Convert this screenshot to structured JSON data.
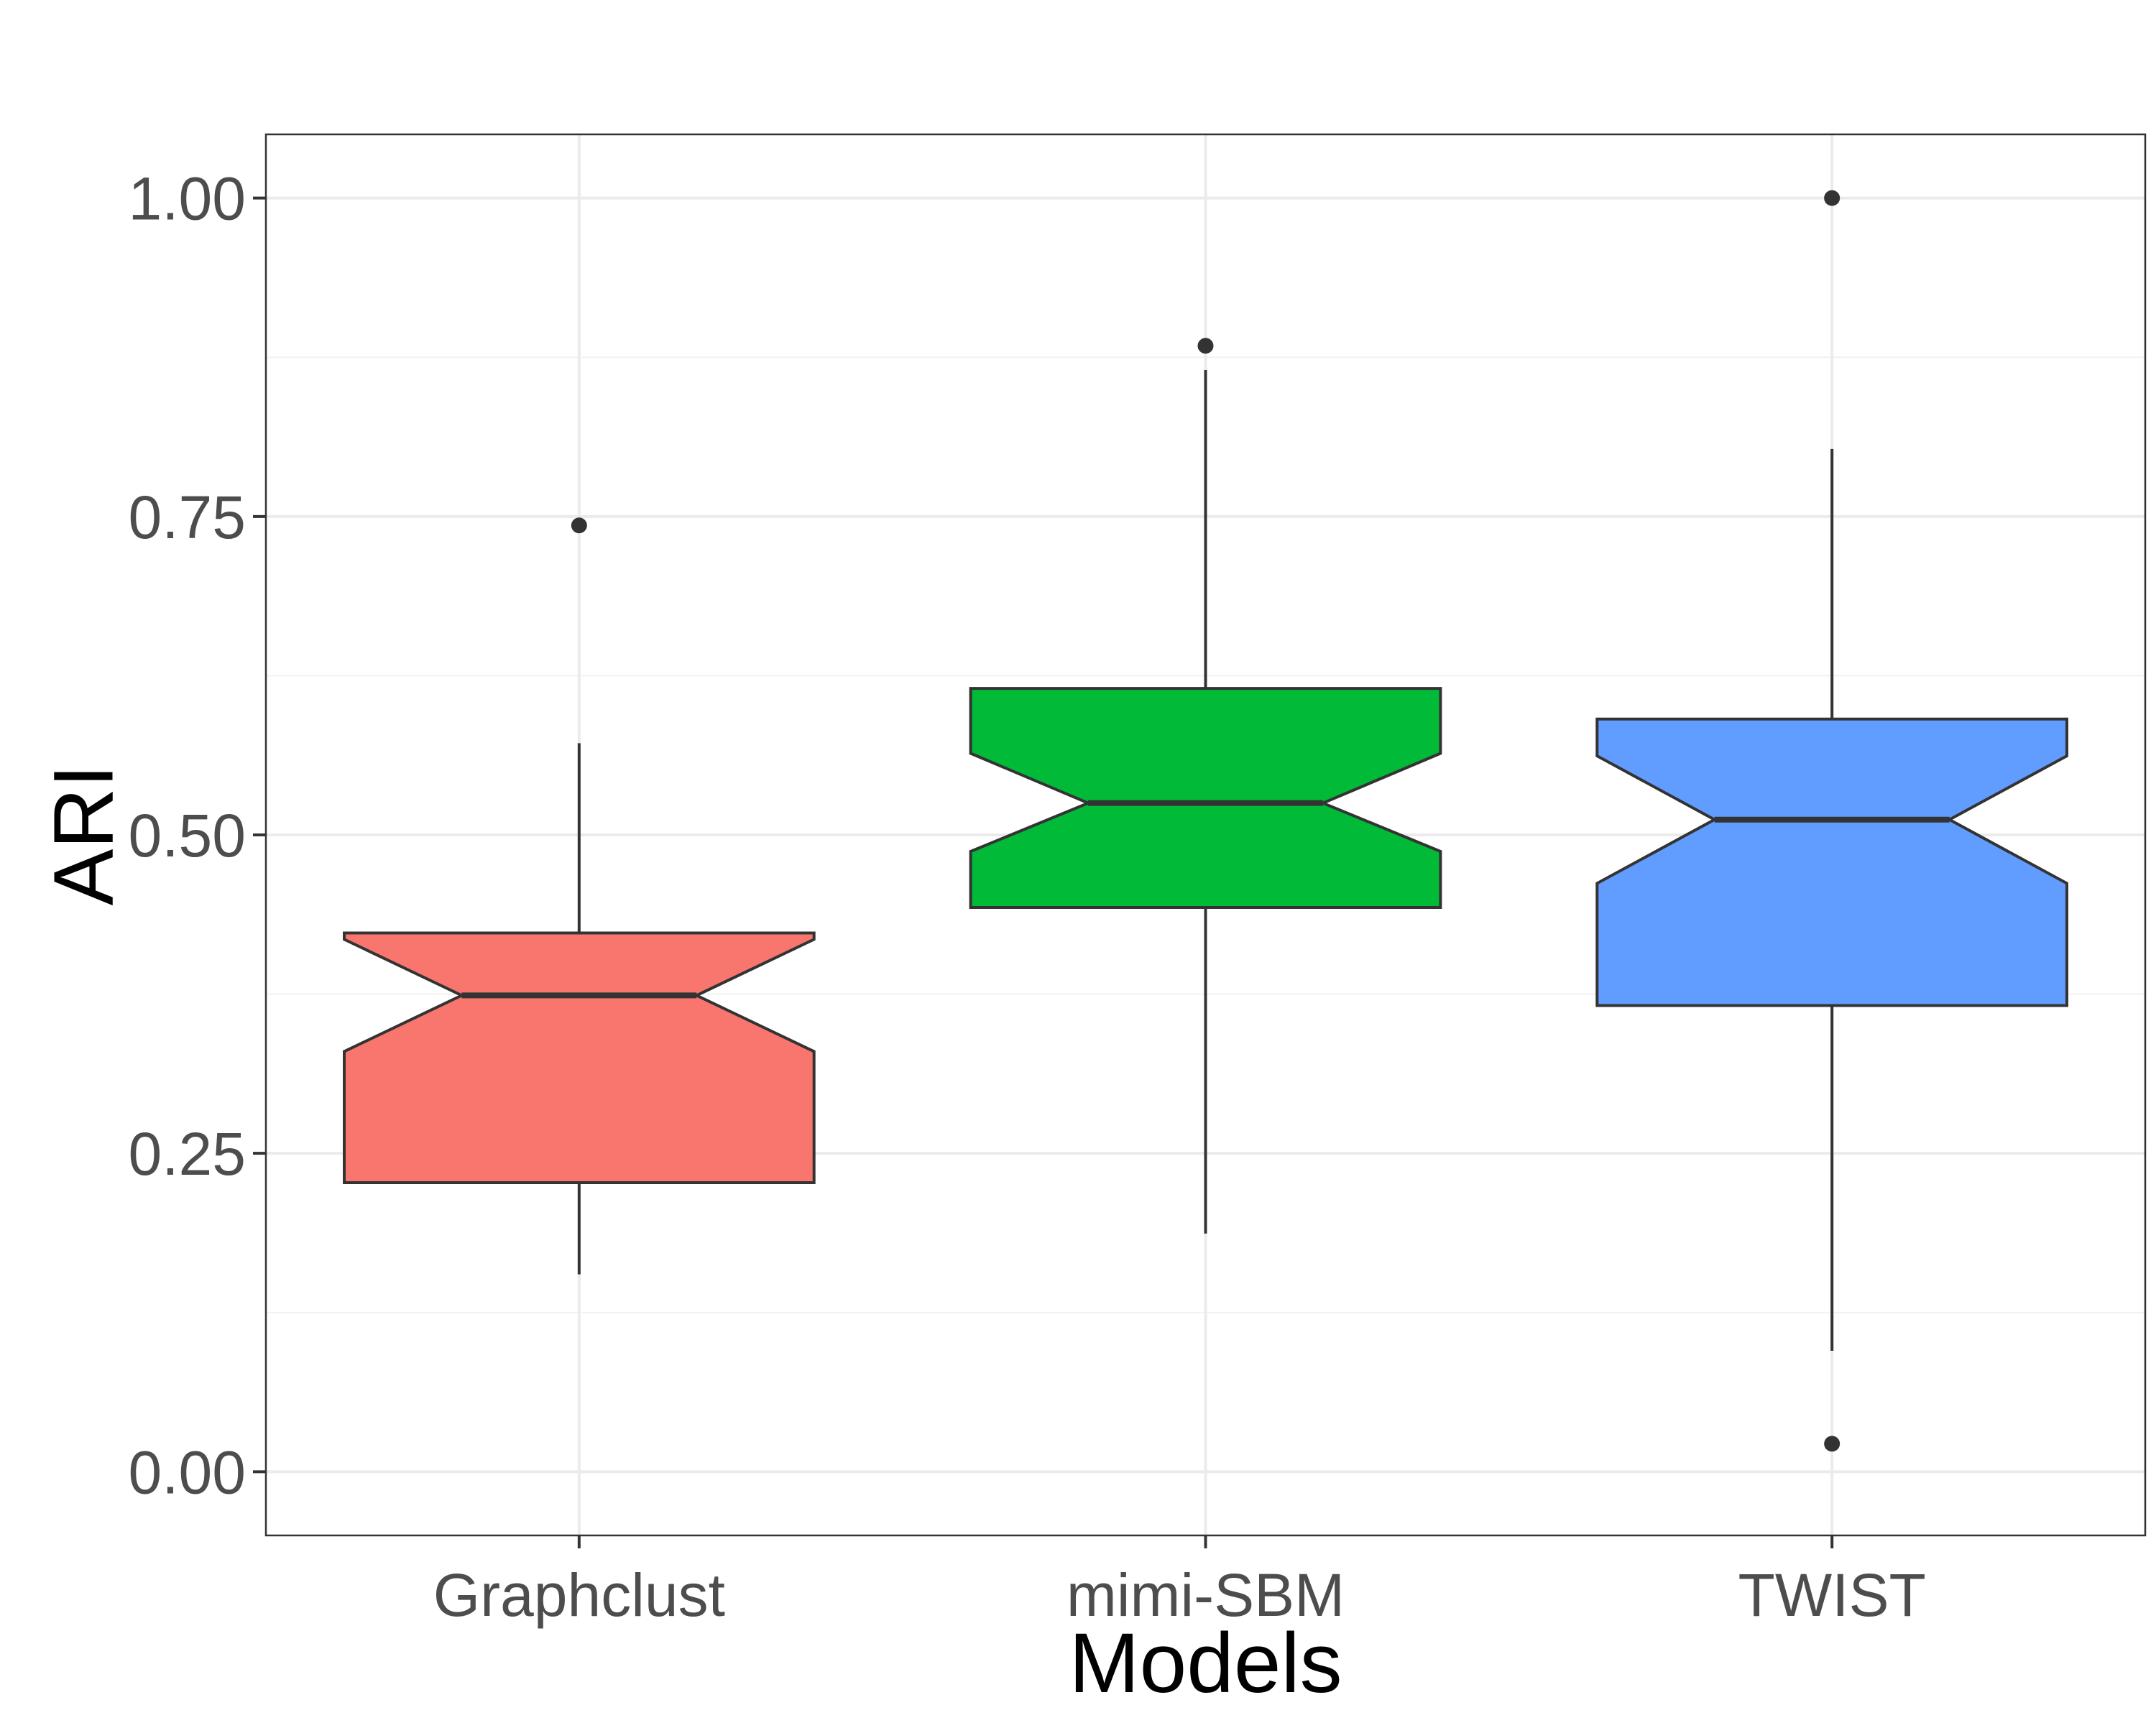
{
  "chart_data": {
    "type": "boxplot",
    "title": "",
    "xlabel": "Models",
    "ylabel": "ARI",
    "ylim": [
      -0.05,
      1.05
    ],
    "yticks": [
      0.0,
      0.25,
      0.5,
      0.75,
      1.0
    ],
    "ytick_labels": [
      "0.00",
      "0.25",
      "0.50",
      "0.75",
      "1.00"
    ],
    "grid": true,
    "notched": true,
    "categories": [
      "Graphclust",
      "mimi-SBM",
      "TWIST"
    ],
    "boxes": [
      {
        "name": "Graphclust",
        "color": "#F8766D",
        "whisker_low": 0.155,
        "q1": 0.227,
        "median": 0.374,
        "q3": 0.423,
        "whisker_high": 0.572,
        "notch_low": 0.33,
        "notch_high": 0.418,
        "outliers": [
          0.743
        ]
      },
      {
        "name": "mimi-SBM",
        "color": "#00BA38",
        "whisker_low": 0.187,
        "q1": 0.443,
        "median": 0.525,
        "q3": 0.615,
        "whisker_high": 0.865,
        "notch_low": 0.487,
        "notch_high": 0.564,
        "outliers": [
          0.884
        ]
      },
      {
        "name": "TWIST",
        "color": "#619CFF",
        "whisker_low": 0.095,
        "q1": 0.366,
        "median": 0.512,
        "q3": 0.591,
        "whisker_high": 0.803,
        "notch_low": 0.462,
        "notch_high": 0.562,
        "outliers": [
          1.0,
          0.022
        ]
      }
    ]
  }
}
